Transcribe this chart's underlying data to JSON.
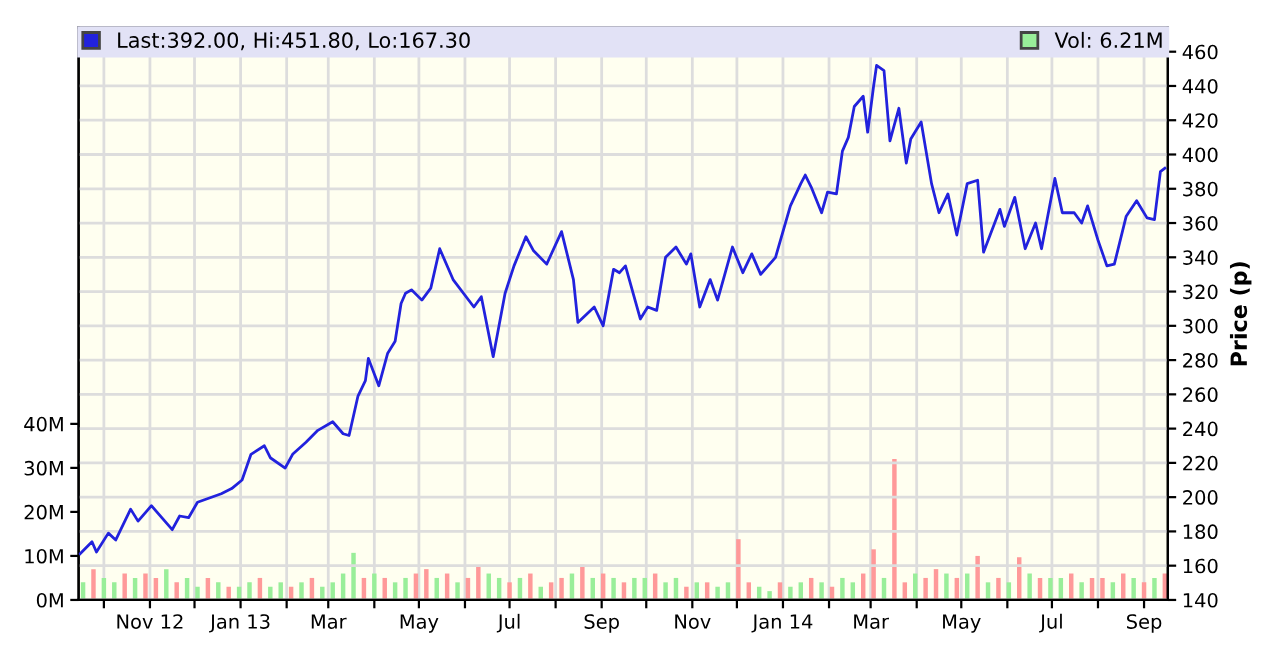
{
  "chart_data": {
    "type": "line",
    "y2label": "Price (p)",
    "legend": "top",
    "grid": true,
    "xlim": [
      "2012-09-14",
      "2014-09-17"
    ],
    "xticks": [
      {
        "value": "2012-10-01",
        "label": null
      },
      {
        "value": "2012-11-01",
        "label": "Nov 12"
      },
      {
        "value": "2012-12-01",
        "label": null
      },
      {
        "value": "2013-01-01",
        "label": "Jan 13"
      },
      {
        "value": "2013-02-01",
        "label": null
      },
      {
        "value": "2013-03-01",
        "label": "Mar"
      },
      {
        "value": "2013-04-01",
        "label": null
      },
      {
        "value": "2013-05-01",
        "label": "May"
      },
      {
        "value": "2013-06-01",
        "label": null
      },
      {
        "value": "2013-07-01",
        "label": "Jul"
      },
      {
        "value": "2013-08-01",
        "label": null
      },
      {
        "value": "2013-09-01",
        "label": "Sep"
      },
      {
        "value": "2013-10-01",
        "label": null
      },
      {
        "value": "2013-11-01",
        "label": "Nov"
      },
      {
        "value": "2013-12-01",
        "label": null
      },
      {
        "value": "2014-01-01",
        "label": "Jan 14"
      },
      {
        "value": "2014-02-01",
        "label": null
      },
      {
        "value": "2014-03-01",
        "label": "Mar"
      },
      {
        "value": "2014-04-01",
        "label": null
      },
      {
        "value": "2014-05-01",
        "label": "May"
      },
      {
        "value": "2014-06-01",
        "label": null
      },
      {
        "value": "2014-07-01",
        "label": "Jul"
      },
      {
        "value": "2014-08-01",
        "label": null
      },
      {
        "value": "2014-09-01",
        "label": "Sep"
      }
    ],
    "ylim": [
      0,
      130
    ],
    "yticks": [
      {
        "value": 0,
        "label": "0M"
      },
      {
        "value": 10,
        "label": "10M"
      },
      {
        "value": 20,
        "label": "20M"
      },
      {
        "value": 30,
        "label": "30M"
      },
      {
        "value": 40,
        "label": "40M"
      }
    ],
    "y2lim": [
      140,
      474
    ],
    "y2ticks": [
      140,
      160,
      180,
      200,
      220,
      240,
      260,
      280,
      300,
      320,
      340,
      360,
      380,
      400,
      420,
      440,
      460
    ],
    "series": [
      {
        "name": "Last:392.00, Hi:451.80, Lo:167.30",
        "axis": "y2",
        "color": "#2222dd",
        "x": [
          "2012-09-15",
          "2012-09-23",
          "2012-09-26",
          "2012-10-04",
          "2012-10-09",
          "2012-10-19",
          "2012-10-24",
          "2012-11-02",
          "2012-11-16",
          "2012-11-21",
          "2012-11-27",
          "2012-12-03",
          "2012-12-19",
          "2012-12-26",
          "2013-01-02",
          "2013-01-08",
          "2013-01-17",
          "2013-01-21",
          "2013-01-31",
          "2013-02-05",
          "2013-02-14",
          "2013-02-22",
          "2013-03-04",
          "2013-03-11",
          "2013-03-15",
          "2013-03-21",
          "2013-03-26",
          "2013-03-28",
          "2013-04-04",
          "2013-04-10",
          "2013-04-15",
          "2013-04-19",
          "2013-04-22",
          "2013-04-26",
          "2013-05-03",
          "2013-05-09",
          "2013-05-15",
          "2013-05-24",
          "2013-06-07",
          "2013-06-12",
          "2013-06-20",
          "2013-06-28",
          "2013-07-04",
          "2013-07-12",
          "2013-07-17",
          "2013-07-26",
          "2013-08-05",
          "2013-08-13",
          "2013-08-16",
          "2013-08-27",
          "2013-09-02",
          "2013-09-09",
          "2013-09-13",
          "2013-09-17",
          "2013-09-27",
          "2013-10-02",
          "2013-10-08",
          "2013-10-14",
          "2013-10-21",
          "2013-10-28",
          "2013-10-31",
          "2013-11-06",
          "2013-11-13",
          "2013-11-18",
          "2013-11-28",
          "2013-12-05",
          "2013-12-11",
          "2013-12-17",
          "2013-12-27",
          "2014-01-06",
          "2014-01-13",
          "2014-01-16",
          "2014-01-20",
          "2014-01-27",
          "2014-01-31",
          "2014-02-06",
          "2014-02-10",
          "2014-02-14",
          "2014-02-18",
          "2014-02-24",
          "2014-02-27",
          "2014-03-03",
          "2014-03-05",
          "2014-03-10",
          "2014-03-14",
          "2014-03-20",
          "2014-03-25",
          "2014-03-28",
          "2014-04-04",
          "2014-04-11",
          "2014-04-16",
          "2014-04-22",
          "2014-04-28",
          "2014-05-05",
          "2014-05-12",
          "2014-05-16",
          "2014-05-27",
          "2014-05-30",
          "2014-06-06",
          "2014-06-13",
          "2014-06-20",
          "2014-06-24",
          "2014-07-03",
          "2014-07-08",
          "2014-07-16",
          "2014-07-21",
          "2014-07-25",
          "2014-08-01",
          "2014-08-07",
          "2014-08-12",
          "2014-08-20",
          "2014-08-27",
          "2014-09-03",
          "2014-09-08",
          "2014-09-12",
          "2014-09-15"
        ],
        "values": [
          167,
          174,
          168,
          179,
          175,
          193,
          186,
          195,
          181,
          189,
          188,
          197,
          202,
          205,
          210,
          225,
          230,
          223,
          217,
          225,
          232,
          239,
          244,
          237,
          236,
          259,
          268,
          281,
          265,
          284,
          291,
          313,
          319,
          321,
          315,
          322,
          345,
          327,
          311,
          317,
          282,
          319,
          335,
          352,
          344,
          336,
          355,
          327,
          302,
          311,
          300,
          333,
          331,
          335,
          304,
          311,
          309,
          340,
          346,
          336,
          342,
          311,
          327,
          315,
          346,
          331,
          342,
          330,
          340,
          370,
          383,
          388,
          381,
          366,
          378,
          377,
          402,
          410,
          428,
          434,
          413,
          440,
          452,
          449,
          408,
          427,
          395,
          409,
          419,
          383,
          366,
          377,
          353,
          383,
          385,
          343,
          368,
          358,
          375,
          345,
          360,
          345,
          386,
          366,
          366,
          360,
          370,
          350,
          335,
          336,
          364,
          373,
          363,
          362,
          390,
          392
        ]
      },
      {
        "name": "Vol: 6.21M",
        "type": "bar",
        "axis": "y",
        "color": "#99ee99",
        "x": [
          "2012-09-17",
          "2012-09-24",
          "2012-10-01",
          "2012-10-08",
          "2012-10-15",
          "2012-10-22",
          "2012-10-29",
          "2012-11-05",
          "2012-11-12",
          "2012-11-19",
          "2012-11-26",
          "2012-12-03",
          "2012-12-10",
          "2012-12-17",
          "2012-12-24",
          "2012-12-31",
          "2013-01-07",
          "2013-01-14",
          "2013-01-21",
          "2013-01-28",
          "2013-02-04",
          "2013-02-11",
          "2013-02-18",
          "2013-02-25",
          "2013-03-04",
          "2013-03-11",
          "2013-03-18",
          "2013-03-25",
          "2013-04-01",
          "2013-04-08",
          "2013-04-15",
          "2013-04-22",
          "2013-04-29",
          "2013-05-06",
          "2013-05-13",
          "2013-05-20",
          "2013-05-27",
          "2013-06-03",
          "2013-06-10",
          "2013-06-17",
          "2013-06-24",
          "2013-07-01",
          "2013-07-08",
          "2013-07-15",
          "2013-07-22",
          "2013-07-29",
          "2013-08-05",
          "2013-08-12",
          "2013-08-19",
          "2013-08-26",
          "2013-09-02",
          "2013-09-09",
          "2013-09-16",
          "2013-09-23",
          "2013-09-30",
          "2013-10-07",
          "2013-10-14",
          "2013-10-21",
          "2013-10-28",
          "2013-11-04",
          "2013-11-11",
          "2013-11-18",
          "2013-11-25",
          "2013-12-02",
          "2013-12-09",
          "2013-12-16",
          "2013-12-23",
          "2013-12-30",
          "2014-01-06",
          "2014-01-13",
          "2014-01-20",
          "2014-01-27",
          "2014-02-03",
          "2014-02-10",
          "2014-02-17",
          "2014-02-24",
          "2014-03-03",
          "2014-03-10",
          "2014-03-17",
          "2014-03-24",
          "2014-03-31",
          "2014-04-07",
          "2014-04-14",
          "2014-04-21",
          "2014-04-28",
          "2014-05-05",
          "2014-05-12",
          "2014-05-19",
          "2014-05-26",
          "2014-06-02",
          "2014-06-09",
          "2014-06-16",
          "2014-06-23",
          "2014-06-30",
          "2014-07-07",
          "2014-07-14",
          "2014-07-21",
          "2014-07-28",
          "2014-08-04",
          "2014-08-11",
          "2014-08-18",
          "2014-08-25",
          "2014-09-01",
          "2014-09-08",
          "2014-09-15"
        ],
        "values": [
          4,
          7,
          5,
          4,
          6,
          5,
          6,
          5,
          7,
          4,
          5,
          3,
          5,
          4,
          3,
          3,
          4,
          5,
          3,
          4,
          3,
          4,
          5,
          3,
          4,
          6,
          10.7,
          5,
          6,
          5,
          4,
          5,
          6,
          7,
          5,
          6,
          4,
          5,
          7.9,
          6,
          5,
          4,
          5,
          6,
          3,
          4,
          5,
          6,
          8,
          5,
          6,
          5,
          4,
          5,
          5,
          6,
          4,
          5,
          3,
          4,
          4,
          3,
          4,
          13.8,
          4,
          3,
          2,
          4,
          3,
          4,
          5,
          4,
          3,
          5,
          4,
          6,
          11.5,
          5,
          32,
          4,
          6,
          5,
          7,
          6,
          5,
          6,
          10,
          4,
          5,
          4,
          9.7,
          6,
          5,
          5,
          5,
          6,
          4,
          5,
          5,
          4,
          6,
          5,
          4,
          5,
          6
        ],
        "colors": [
          "#99ee99",
          "#ff9999",
          "#99ee99",
          "#99ee99",
          "#ff9999",
          "#99ee99",
          "#ff9999",
          "#ff9999",
          "#99ee99",
          "#ff9999",
          "#99ee99",
          "#99ee99",
          "#ff9999",
          "#99ee99",
          "#ff9999",
          "#99ee99",
          "#99ee99",
          "#ff9999",
          "#99ee99",
          "#99ee99",
          "#ff9999",
          "#99ee99",
          "#ff9999",
          "#99ee99",
          "#99ee99",
          "#99ee99",
          "#99ee99",
          "#ff9999",
          "#99ee99",
          "#ff9999",
          "#99ee99",
          "#99ee99",
          "#ff9999",
          "#ff9999",
          "#99ee99",
          "#ff9999",
          "#99ee99",
          "#ff9999",
          "#ff9999",
          "#99ee99",
          "#99ee99",
          "#ff9999",
          "#99ee99",
          "#ff9999",
          "#99ee99",
          "#ff9999",
          "#ff9999",
          "#99ee99",
          "#ff9999",
          "#99ee99",
          "#ff9999",
          "#99ee99",
          "#ff9999",
          "#99ee99",
          "#99ee99",
          "#ff9999",
          "#99ee99",
          "#99ee99",
          "#ff9999",
          "#99ee99",
          "#ff9999",
          "#99ee99",
          "#99ee99",
          "#ff9999",
          "#ff9999",
          "#99ee99",
          "#99ee99",
          "#ff9999",
          "#99ee99",
          "#99ee99",
          "#ff9999",
          "#99ee99",
          "#ff9999",
          "#99ee99",
          "#99ee99",
          "#ff9999",
          "#ff9999",
          "#99ee99",
          "#ff9999",
          "#ff9999",
          "#99ee99",
          "#ff9999",
          "#ff9999",
          "#99ee99",
          "#ff9999",
          "#99ee99",
          "#ff9999",
          "#99ee99",
          "#ff9999",
          "#99ee99",
          "#ff9999",
          "#99ee99",
          "#ff9999",
          "#99ee99",
          "#99ee99",
          "#ff9999",
          "#99ee99",
          "#ff9999",
          "#ff9999",
          "#99ee99",
          "#ff9999",
          "#99ee99",
          "#ff9999",
          "#99ee99",
          "#ff9999"
        ]
      }
    ]
  }
}
